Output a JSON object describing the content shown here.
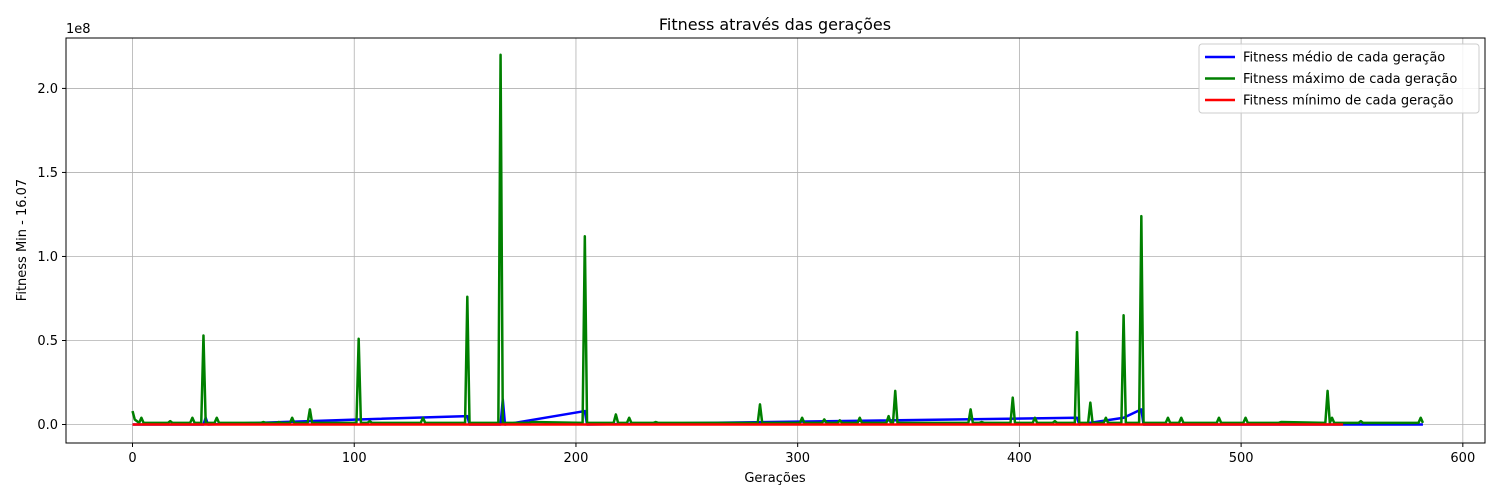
{
  "chart_data": {
    "type": "line",
    "title": "Fitness através das gerações",
    "xlabel": "Gerações",
    "ylabel": "Fitness Min -   16.07",
    "y_offset_text": "1e8",
    "y_multiplier": 100000000,
    "xlim": [
      -30,
      610
    ],
    "ylim": [
      -0.11,
      2.3
    ],
    "xticks": [
      0,
      100,
      200,
      300,
      400,
      500,
      600
    ],
    "xtick_labels": [
      "0",
      "100",
      "200",
      "300",
      "400",
      "500",
      "600"
    ],
    "yticks": [
      0.0,
      0.5,
      1.0,
      1.5,
      2.0
    ],
    "ytick_labels": [
      "0.0",
      "0.5",
      "1.0",
      "1.5",
      "2.0"
    ],
    "grid": true,
    "legend_position": "top-right",
    "series": [
      {
        "name": "Fitness médio de cada geração",
        "color": "#0000ff",
        "x": [
          0,
          32,
          33,
          34,
          102,
          151,
          152,
          166,
          167,
          168,
          204,
          205,
          426,
          427,
          447,
          455,
          456,
          582
        ],
        "y": [
          0,
          0,
          0.04,
          0,
          0.03,
          0.05,
          0,
          0,
          0.15,
          0,
          0.08,
          0,
          0.04,
          0,
          0.04,
          0.09,
          0,
          0
        ]
      },
      {
        "name": "Fitness máximo de cada geração",
        "color": "#008000",
        "x": [
          0,
          1,
          3,
          4,
          5,
          16,
          17,
          18,
          26,
          27,
          28,
          31,
          32,
          33,
          37,
          38,
          39,
          58,
          59,
          60,
          65,
          66,
          67,
          71,
          72,
          73,
          79,
          80,
          81,
          101,
          102,
          103,
          106,
          107,
          108,
          130,
          131,
          132,
          150,
          151,
          152,
          165,
          166,
          167,
          179,
          180,
          203,
          204,
          205,
          217,
          218,
          219,
          223,
          224,
          225,
          235,
          236,
          237,
          282,
          283,
          284,
          301,
          302,
          303,
          311,
          312,
          313,
          318,
          319,
          320,
          327,
          328,
          329,
          340,
          341,
          342,
          343,
          344,
          345,
          377,
          378,
          379,
          382,
          383,
          384,
          396,
          397,
          398,
          406,
          407,
          408,
          415,
          416,
          417,
          425,
          426,
          427,
          431,
          432,
          433,
          438,
          439,
          440,
          446,
          447,
          448,
          454,
          455,
          456,
          466,
          467,
          468,
          472,
          473,
          474,
          489,
          490,
          491,
          501,
          502,
          503,
          517,
          518,
          538,
          539,
          540,
          541,
          542,
          553,
          554,
          555,
          580,
          581,
          582
        ],
        "y": [
          0.08,
          0.03,
          0.01,
          0.04,
          0.01,
          0.01,
          0.02,
          0.01,
          0.01,
          0.04,
          0.01,
          0.01,
          0.53,
          0.01,
          0.01,
          0.04,
          0.01,
          0.01,
          0.015,
          0.01,
          0.01,
          0.015,
          0.01,
          0.01,
          0.04,
          0.01,
          0.01,
          0.09,
          0.01,
          0.01,
          0.51,
          0.01,
          0.01,
          0.02,
          0.01,
          0.01,
          0.04,
          0.01,
          0.01,
          0.76,
          0.01,
          0.01,
          2.2,
          0.01,
          0.01,
          0.015,
          0.01,
          1.12,
          0.01,
          0.01,
          0.06,
          0.01,
          0.01,
          0.04,
          0.01,
          0.01,
          0.015,
          0.01,
          0.01,
          0.12,
          0.01,
          0.01,
          0.04,
          0.01,
          0.01,
          0.03,
          0.01,
          0.01,
          0.025,
          0.01,
          0.01,
          0.04,
          0.01,
          0.01,
          0.05,
          0.01,
          0.01,
          0.2,
          0.01,
          0.01,
          0.09,
          0.01,
          0.01,
          0.015,
          0.01,
          0.01,
          0.16,
          0.01,
          0.01,
          0.04,
          0.01,
          0.01,
          0.02,
          0.01,
          0.01,
          0.55,
          0.01,
          0.01,
          0.13,
          0.01,
          0.01,
          0.04,
          0.01,
          0.01,
          0.65,
          0.01,
          0.01,
          1.24,
          0.01,
          0.01,
          0.04,
          0.01,
          0.01,
          0.04,
          0.01,
          0.01,
          0.04,
          0.01,
          0.01,
          0.04,
          0.01,
          0.01,
          0.015,
          0.01,
          0.2,
          0.01,
          0.04,
          0.01,
          0.01,
          0.02,
          0.01,
          0.01,
          0.04,
          0.01
        ]
      },
      {
        "name": "Fitness mínimo de cada geração",
        "color": "#ff0000",
        "x": [
          0,
          546
        ],
        "y": [
          0,
          0
        ]
      }
    ]
  }
}
